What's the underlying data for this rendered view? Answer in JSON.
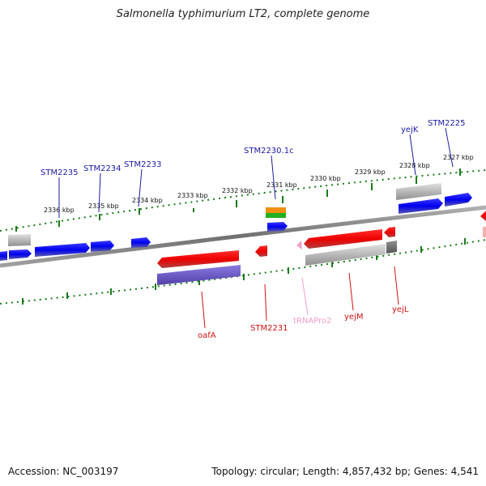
{
  "title": "Salmonella typhimurium LT2, complete genome",
  "footer": {
    "accession": "Accession: NC_003197",
    "summary": "Topology: circular; Length: 4,857,432 bp; Genes: 4,541"
  },
  "kbp_labels": [
    "2336 kbp",
    "2335 kbp",
    "2334 kbp",
    "2333 kbp",
    "2332 kbp",
    "2331 kbp",
    "2330 kbp",
    "2329 kbp",
    "2328 kbp",
    "2327 kbp"
  ],
  "gene_labels_top": [
    "STM2235",
    "STM2234",
    "STM2233",
    "STM2230.1c",
    "yejK",
    "STM2225"
  ],
  "gene_labels_bottom": [
    "oafA",
    "STM2231",
    "tRNAPro2",
    "yejM",
    "yejL"
  ],
  "colors": {
    "forward_gene": "#0000ee",
    "reverse_gene": "#ee0000",
    "trna": "#f0a0c8",
    "backbone": "#777777",
    "tick": "#1a7a1a",
    "label_forward": "#1a1aa0",
    "label_reverse": "#cc1111"
  }
}
